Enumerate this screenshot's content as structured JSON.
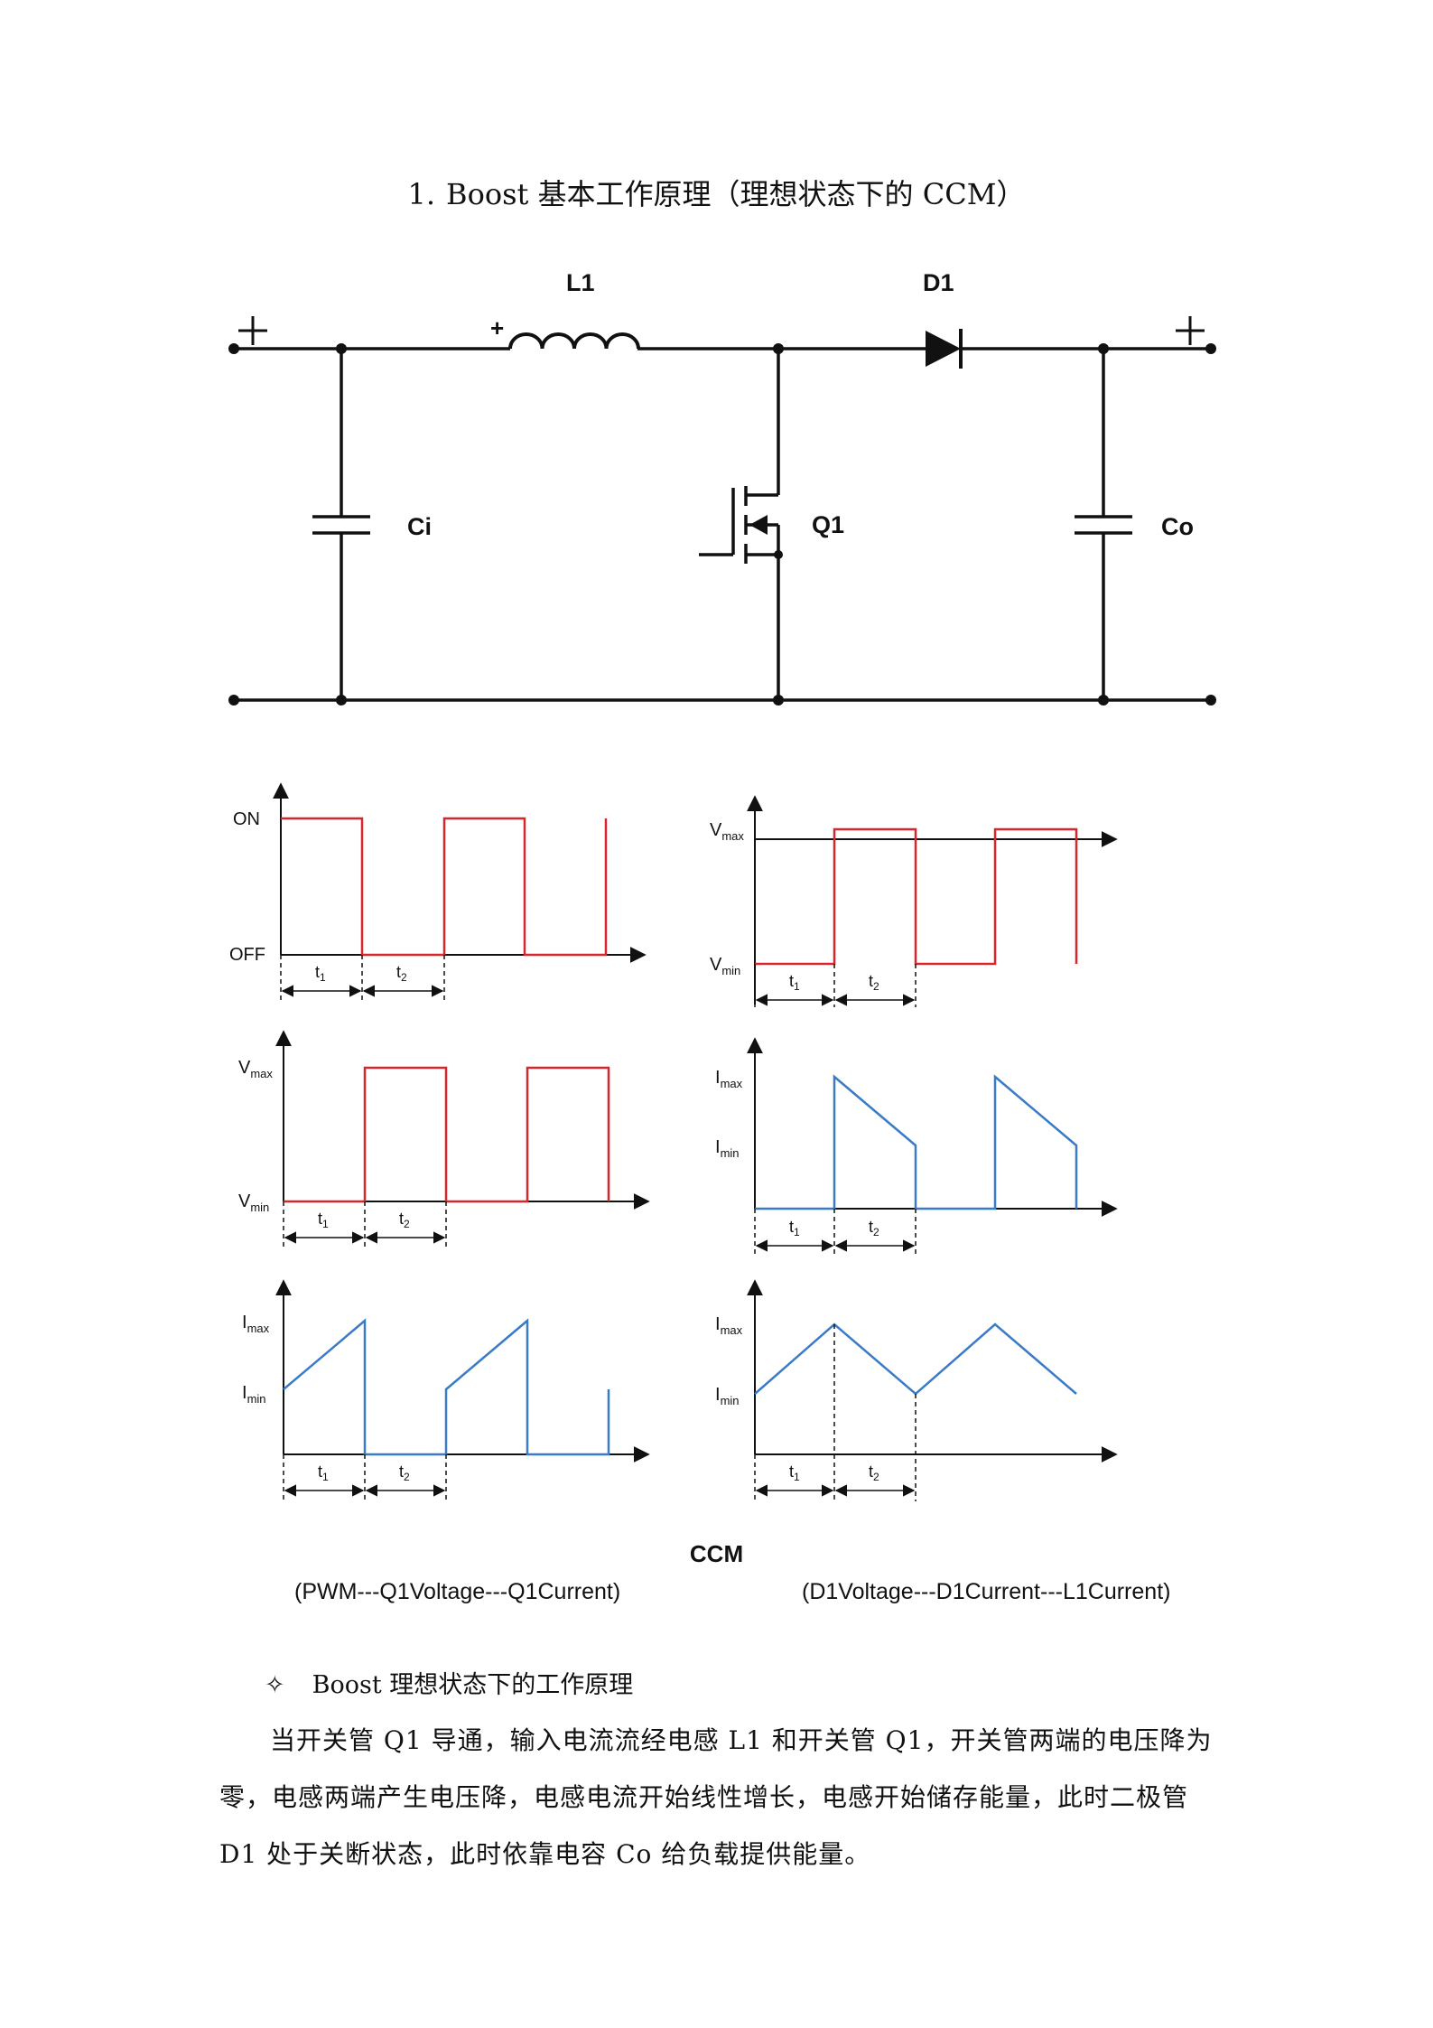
{
  "document": {
    "heading_number": "1.",
    "heading_text": "Boost 基本工作原理（理想状态下的 CCM）"
  },
  "circuit": {
    "L1": "L1",
    "D1": "D1",
    "Ci": "Ci",
    "Q1": "Q1",
    "Co": "Co",
    "plus": "+"
  },
  "waveforms": {
    "pwm": {
      "high": "ON",
      "low": "OFF"
    },
    "vmax": "V",
    "vmax_sub": "max",
    "vmin": "V",
    "vmin_sub": "min",
    "imax": "I",
    "imax_sub": "max",
    "imin": "I",
    "imin_sub": "min",
    "t1": "t",
    "t1_sub": "1",
    "t2": "t",
    "t2_sub": "2",
    "red": "#d9262c",
    "blue": "#3a7bc8"
  },
  "captions": {
    "ccm": "CCM",
    "left": "(PWM---Q1Voltage---Q1Current)",
    "right": "(D1Voltage---D1Current---L1Current)"
  },
  "section": {
    "bullet_mark": "✧",
    "bullet_text": "Boost 理想状态下的工作原理",
    "paragraph": "当开关管 Q1 导通，输入电流流经电感 L1 和开关管 Q1，开关管两端的电压降为零，电感两端产生电压降，电感电流开始线性增长，电感开始储存能量，此时二极管 D1 处于关断状态，此时依靠电容 Co 给负载提供能量。"
  }
}
